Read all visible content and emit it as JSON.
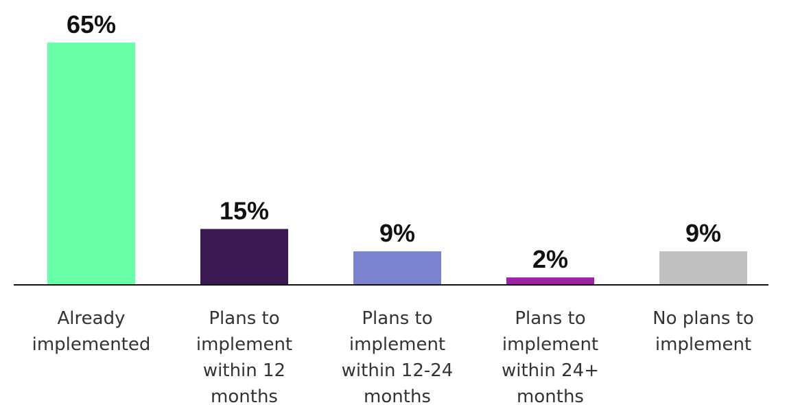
{
  "chart_data": {
    "type": "bar",
    "categories": [
      [
        "Already",
        "implemented"
      ],
      [
        "Plans to",
        "implement",
        "within 12",
        "months"
      ],
      [
        "Plans to",
        "implement",
        "within 12-24",
        "months"
      ],
      [
        "Plans to",
        "implement",
        "within 24+",
        "months"
      ],
      [
        "No plans to",
        "implement"
      ]
    ],
    "values": [
      65,
      15,
      9,
      2,
      9
    ],
    "value_labels": [
      "65%",
      "15%",
      "9%",
      "2%",
      "9%"
    ],
    "colors": [
      "#66ffa6",
      "#3b1a54",
      "#7b83d1",
      "#a020a8",
      "#c0c0c0"
    ],
    "ylim": [
      0,
      65
    ],
    "title": "",
    "xlabel": "",
    "ylabel": "",
    "grid": false,
    "legend": "none"
  }
}
